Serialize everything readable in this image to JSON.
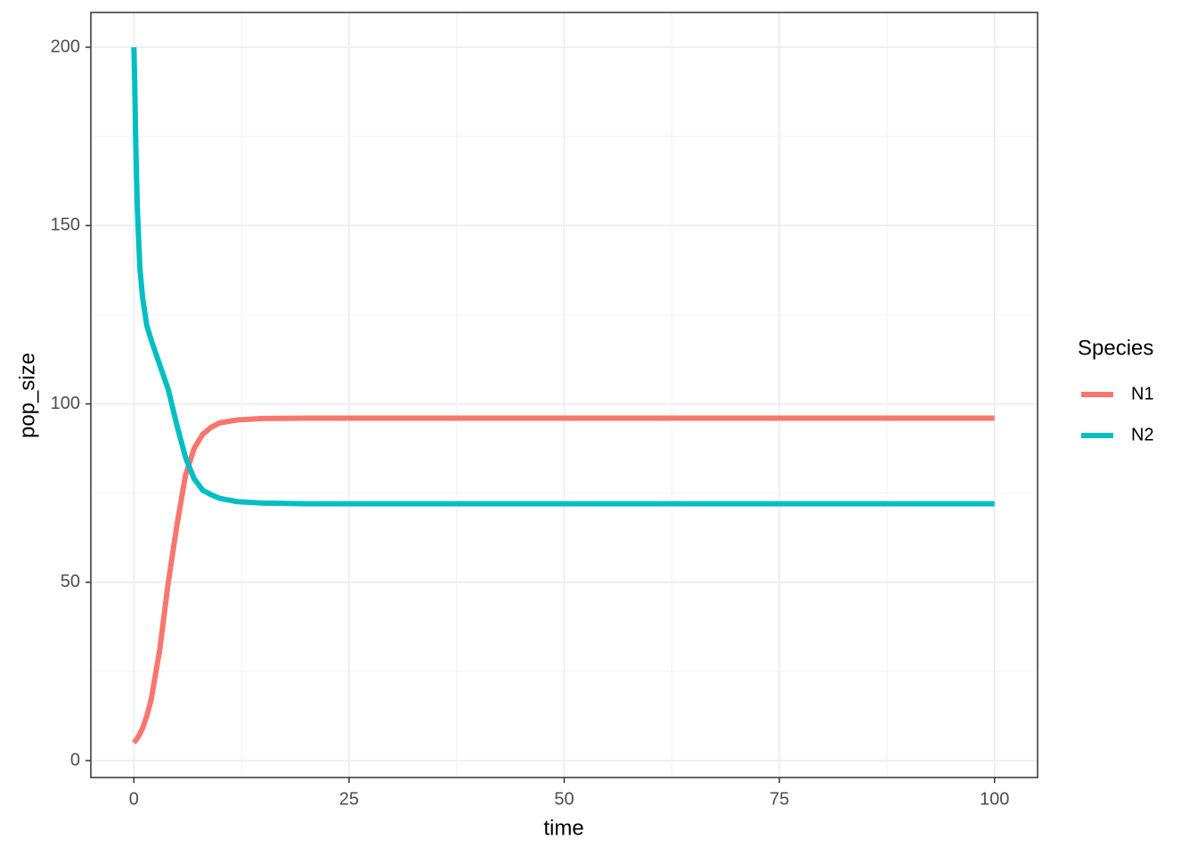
{
  "chart_data": {
    "type": "line",
    "x_label": "time",
    "y_label": "pop_size",
    "x": [
      0,
      0.1,
      0.2,
      0.4,
      0.7,
      1,
      1.5,
      2,
      3,
      4,
      5,
      6,
      7,
      8,
      9,
      10,
      12,
      15,
      20,
      100
    ],
    "series": [
      {
        "name": "N1",
        "color": "#F8766D",
        "values": [
          5,
          5.3,
          5.6,
          6.3,
          7.5,
          9,
          12.5,
          17,
          31,
          50,
          66,
          80,
          87.5,
          91.5,
          93.5,
          94.7,
          95.5,
          95.9,
          96,
          96
        ]
      },
      {
        "name": "N2",
        "color": "#00BFC4",
        "values": [
          200,
          190,
          175,
          155,
          138,
          130,
          122,
          118,
          111,
          104,
          94,
          85,
          79,
          75.8,
          74.5,
          73.5,
          72.6,
          72.2,
          72,
          72
        ]
      }
    ],
    "legend_title": "Species",
    "legend_position": "right",
    "xlim": [
      -5,
      105
    ],
    "xticks": [
      0,
      25,
      50,
      75,
      100
    ],
    "ylim": [
      -4.75,
      209.75
    ],
    "yticks": [
      0,
      50,
      100,
      150,
      200
    ],
    "grid": true,
    "minor_grid": true
  }
}
